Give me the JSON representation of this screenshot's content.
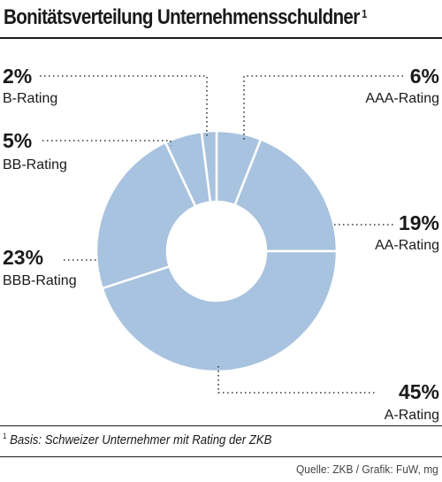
{
  "header": {
    "title": "Bonitätsverteilung Unternehmensschuldner",
    "title_sup": "1"
  },
  "footer": {
    "footnote_sup": "1",
    "footnote": "Basis: Schweizer Unternehmer mit Rating der ZKB",
    "source": "Quelle: ZKB / Grafik: FuW, mg"
  },
  "chart_data": {
    "type": "pie",
    "title": "Bonitätsverteilung Unternehmensschuldner",
    "donut": true,
    "slices": [
      {
        "label": "AAA-Rating",
        "value": 6,
        "value_label": "6%"
      },
      {
        "label": "AA-Rating",
        "value": 19,
        "value_label": "19%"
      },
      {
        "label": "A-Rating",
        "value": 45,
        "value_label": "45%"
      },
      {
        "label": "BBB-Rating",
        "value": 23,
        "value_label": "23%"
      },
      {
        "label": "BB-Rating",
        "value": 5,
        "value_label": "5%"
      },
      {
        "label": "B-Rating",
        "value": 2,
        "value_label": "2%"
      }
    ],
    "colors": {
      "slice": "#a8c3df",
      "separator": "#ffffff",
      "leader": "#333333"
    }
  }
}
